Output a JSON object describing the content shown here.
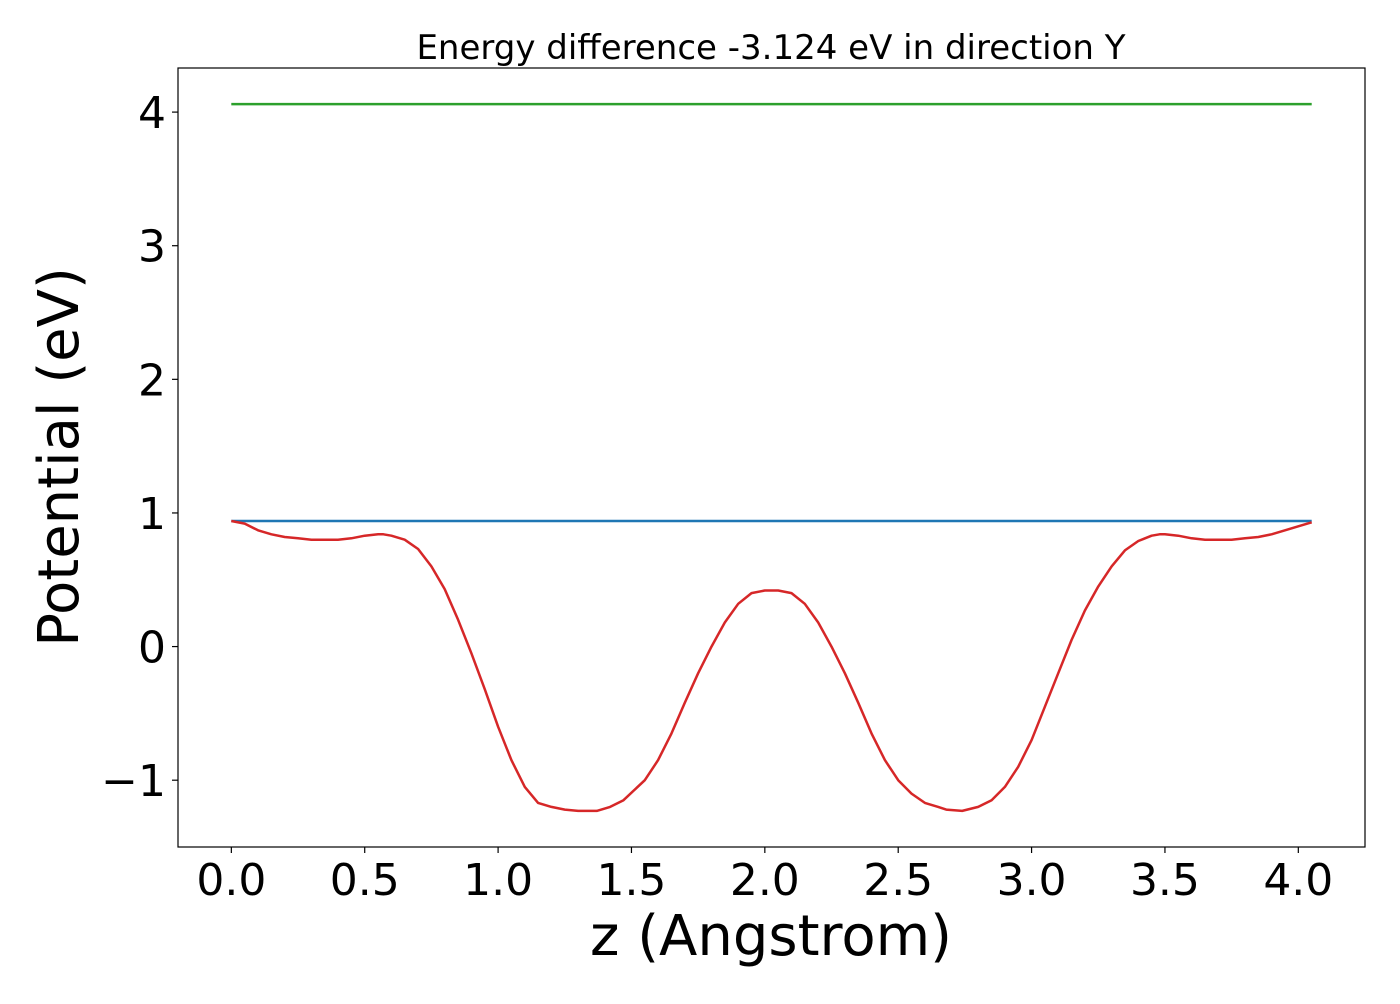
{
  "chart_data": {
    "type": "line",
    "title": "Energy difference -3.124 eV in direction Y",
    "xlabel": "z (Angstrom)",
    "ylabel": "Potential (eV)",
    "xlim": [
      -0.2,
      4.25
    ],
    "ylim": [
      -1.5,
      4.33
    ],
    "xticks": [
      0.0,
      0.5,
      1.0,
      1.5,
      2.0,
      2.5,
      3.0,
      3.5,
      4.0
    ],
    "xtick_labels": [
      "0.0",
      "0.5",
      "1.0",
      "1.5",
      "2.0",
      "2.5",
      "3.0",
      "3.5",
      "4.0"
    ],
    "yticks": [
      -1,
      0,
      1,
      2,
      3,
      4
    ],
    "ytick_labels": [
      "−1",
      "0",
      "1",
      "2",
      "3",
      "4"
    ],
    "grid": false,
    "legend": "none",
    "series": [
      {
        "color": "#2ca02c",
        "x": [
          0.0,
          4.05
        ],
        "y": [
          4.06,
          4.06
        ]
      },
      {
        "color": "#1f77b4",
        "x": [
          0.0,
          4.05
        ],
        "y": [
          0.94,
          0.94
        ]
      },
      {
        "color": "#d62728",
        "x": [
          0.0,
          0.05,
          0.1,
          0.15,
          0.2,
          0.25,
          0.3,
          0.35,
          0.4,
          0.45,
          0.5,
          0.55,
          0.57,
          0.6,
          0.65,
          0.7,
          0.75,
          0.8,
          0.85,
          0.9,
          0.95,
          1.0,
          1.05,
          1.1,
          1.15,
          1.2,
          1.25,
          1.3,
          1.37,
          1.42,
          1.47,
          1.55,
          1.6,
          1.65,
          1.7,
          1.75,
          1.8,
          1.85,
          1.9,
          1.95,
          2.0,
          2.05,
          2.1,
          2.15,
          2.2,
          2.25,
          2.3,
          2.35,
          2.4,
          2.45,
          2.5,
          2.55,
          2.6,
          2.65,
          2.68,
          2.74,
          2.8,
          2.85,
          2.9,
          2.95,
          3.0,
          3.05,
          3.1,
          3.15,
          3.2,
          3.25,
          3.3,
          3.35,
          3.4,
          3.45,
          3.48,
          3.5,
          3.55,
          3.6,
          3.65,
          3.7,
          3.75,
          3.8,
          3.85,
          3.9,
          3.95,
          4.0,
          4.05
        ],
        "y": [
          0.94,
          0.92,
          0.87,
          0.84,
          0.82,
          0.81,
          0.8,
          0.8,
          0.8,
          0.81,
          0.83,
          0.84,
          0.84,
          0.83,
          0.8,
          0.73,
          0.6,
          0.43,
          0.2,
          -0.05,
          -0.32,
          -0.6,
          -0.85,
          -1.05,
          -1.17,
          -1.2,
          -1.22,
          -1.23,
          -1.23,
          -1.2,
          -1.15,
          -1.0,
          -0.85,
          -0.65,
          -0.42,
          -0.2,
          0.0,
          0.18,
          0.32,
          0.4,
          0.42,
          0.42,
          0.4,
          0.32,
          0.18,
          0.0,
          -0.2,
          -0.42,
          -0.65,
          -0.85,
          -1.0,
          -1.1,
          -1.17,
          -1.2,
          -1.22,
          -1.23,
          -1.2,
          -1.15,
          -1.05,
          -0.9,
          -0.7,
          -0.45,
          -0.2,
          0.05,
          0.27,
          0.45,
          0.6,
          0.72,
          0.79,
          0.83,
          0.84,
          0.84,
          0.83,
          0.81,
          0.8,
          0.8,
          0.8,
          0.81,
          0.82,
          0.84,
          0.87,
          0.9,
          0.93
        ]
      }
    ]
  }
}
